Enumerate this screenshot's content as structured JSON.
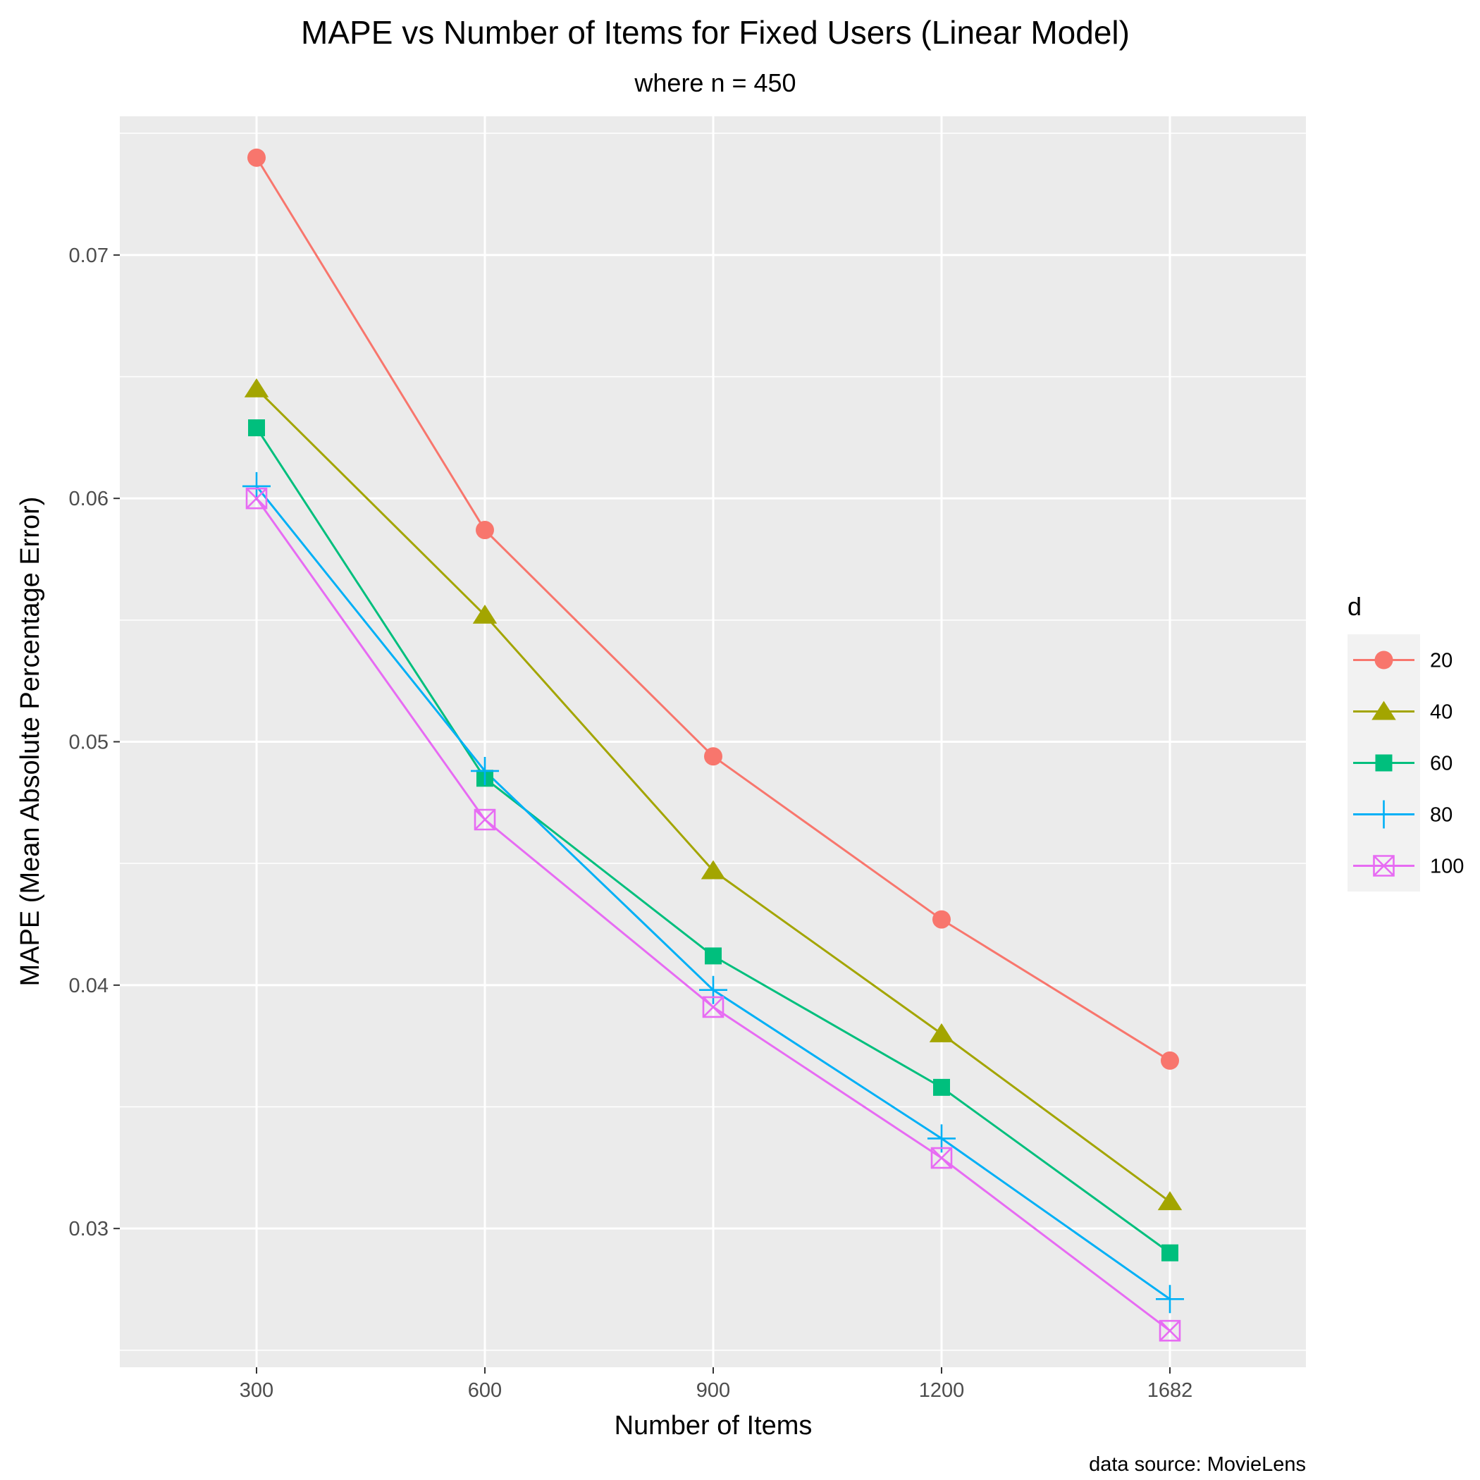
{
  "chart_data": {
    "type": "line",
    "title": "MAPE vs Number of Items for Fixed Users (Linear Model)",
    "subtitle": "where n = 450",
    "xlabel": "Number of Items",
    "ylabel": "MAPE (Mean Absolute Percentage Error)",
    "caption": "data source: MovieLens",
    "x_ticks": [
      "300",
      "600",
      "900",
      "1200",
      "1682"
    ],
    "y_ticks": [
      0.03,
      0.04,
      0.05,
      0.06,
      0.07
    ],
    "y_tick_labels": [
      "0.03",
      "0.04",
      "0.05",
      "0.06",
      "0.07"
    ],
    "ylim": [
      0.0243,
      0.0757
    ],
    "grid": true,
    "legend": {
      "title": "d",
      "position": "right"
    },
    "series": [
      {
        "name": "20",
        "color": "#F8766D",
        "shape": "circle",
        "values": [
          0.074,
          0.0587,
          0.0494,
          0.0427,
          0.0369
        ]
      },
      {
        "name": "40",
        "color": "#A3A500",
        "shape": "triangle",
        "values": [
          0.0645,
          0.0552,
          0.0447,
          0.038,
          0.0311
        ]
      },
      {
        "name": "60",
        "color": "#00BF7D",
        "shape": "square",
        "values": [
          0.0629,
          0.0485,
          0.0412,
          0.0358,
          0.029
        ]
      },
      {
        "name": "80",
        "color": "#00B0F6",
        "shape": "plus",
        "values": [
          0.0605,
          0.0488,
          0.0398,
          0.0337,
          0.0271
        ]
      },
      {
        "name": "100",
        "color": "#E76BF3",
        "shape": "square-x",
        "values": [
          0.06,
          0.0468,
          0.0391,
          0.0329,
          0.0258
        ]
      }
    ]
  }
}
